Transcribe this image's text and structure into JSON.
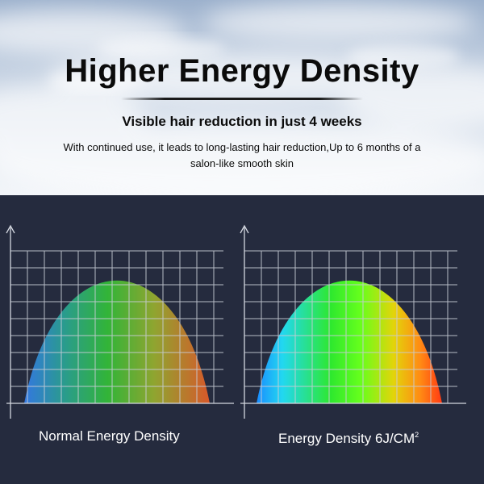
{
  "header": {
    "title": "Higher Energy  Density",
    "subtitle": "Visible hair reduction  in just  4 weeks",
    "description_line1": "With continued use, it leads to long-lasting hair reduction,Up to 6 months of  a",
    "description_line2": "salon-like smooth skin"
  },
  "comparison": {
    "left_caption": "Normal Energy Density",
    "right_caption": "Energy Density 6J/CM",
    "right_caption_superscript": "2"
  },
  "colors": {
    "sky_top": "#9fb3cf",
    "sky_bottom": "#eef2f7",
    "panel_background": "#252b3e",
    "grid_line": "#c8ccd6"
  }
}
